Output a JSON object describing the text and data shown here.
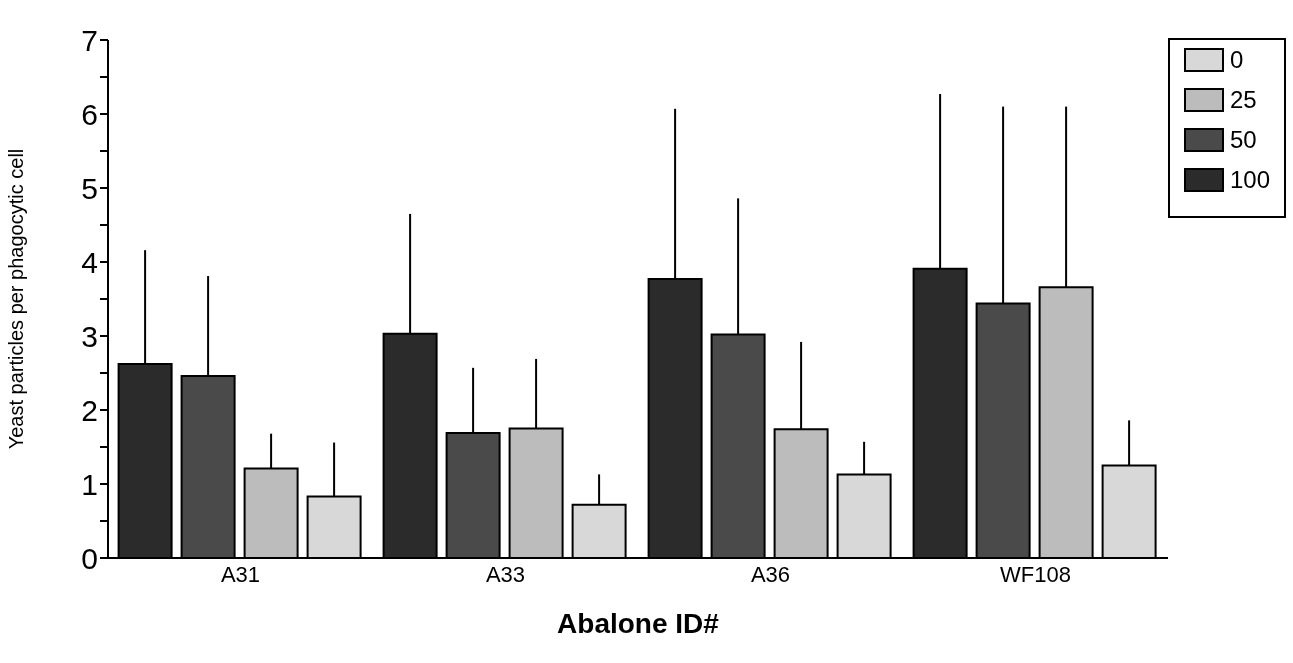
{
  "chart_data": {
    "type": "bar",
    "xlabel": "Abalone ID#",
    "ylabel": "Yeast particles per phagocytic cell",
    "categories": [
      "A31",
      "A33",
      "A36",
      "WF108"
    ],
    "series": [
      {
        "name": "100",
        "color": "#2b2b2b",
        "values": [
          2.62,
          3.03,
          3.77,
          3.91
        ],
        "errors": [
          [
            2.62,
            4.16
          ],
          [
            3.03,
            4.65
          ],
          [
            3.77,
            6.07
          ],
          [
            3.91,
            6.27
          ]
        ]
      },
      {
        "name": "50",
        "color": "#4a4a4a",
        "values": [
          2.46,
          1.69,
          3.02,
          3.44
        ],
        "errors": [
          [
            2.46,
            3.81
          ],
          [
            1.69,
            2.57
          ],
          [
            3.02,
            4.86
          ],
          [
            3.44,
            6.1
          ]
        ]
      },
      {
        "name": "25",
        "color": "#bcbcbc",
        "values": [
          1.21,
          1.75,
          1.74,
          3.66
        ],
        "errors": [
          [
            1.21,
            1.68
          ],
          [
            1.75,
            2.69
          ],
          [
            1.74,
            2.92
          ],
          [
            3.66,
            6.1
          ]
        ]
      },
      {
        "name": "0",
        "color": "#d8d8d8",
        "values": [
          0.83,
          0.72,
          1.13,
          1.25
        ],
        "errors": [
          [
            0.83,
            1.56
          ],
          [
            0.72,
            1.13
          ],
          [
            1.13,
            1.57
          ],
          [
            1.25,
            1.86
          ]
        ]
      }
    ],
    "ylim": [
      0,
      7
    ],
    "yticks": [
      0,
      {
        "value": 0.5,
        "label": null
      },
      1,
      {
        "value": 1.5,
        "label": null
      },
      2,
      {
        "value": 2.5,
        "label": null
      },
      3,
      {
        "value": 3.5,
        "label": null
      },
      4,
      {
        "value": 4.5,
        "label": null
      },
      5,
      {
        "value": 5.5,
        "label": null
      },
      6,
      {
        "value": 6.5,
        "label": null
      },
      7
    ],
    "grid": false,
    "legend": "top right"
  }
}
